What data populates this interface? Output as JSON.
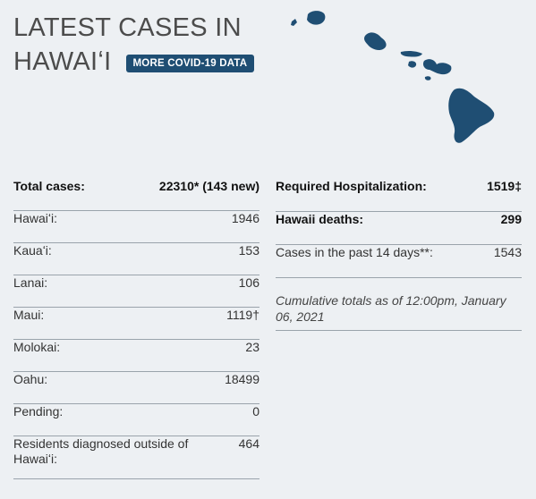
{
  "header": {
    "title_line1": "LATEST CASES IN",
    "title_line2": "HAWAIʻI",
    "more_button": "MORE COVID-19 DATA"
  },
  "map": {
    "icon": "hawaii-islands-map-icon",
    "color": "#1f4e73"
  },
  "left": {
    "total": {
      "label": "Total cases:",
      "value": "22310* (143 new)"
    },
    "rows": [
      {
        "label": "Hawaiʻi:",
        "value": "1946"
      },
      {
        "label": "Kauaʻi:",
        "value": "153"
      },
      {
        "label": "Lanai:",
        "value": "106"
      },
      {
        "label": "Maui:",
        "value": "1119†"
      },
      {
        "label": "Molokai:",
        "value": "23"
      },
      {
        "label": "Oahu:",
        "value": "18499"
      },
      {
        "label": "Pending:",
        "value": "0"
      },
      {
        "label": "Residents diagnosed outside of Hawaiʻi:",
        "value": "464"
      }
    ]
  },
  "right": {
    "hospitalization": {
      "label": "Required Hospitalization:",
      "value": "1519‡"
    },
    "deaths": {
      "label": "Hawaii deaths:",
      "value": "299"
    },
    "past14": {
      "label": "Cases in the past 14 days**:",
      "value": "1543"
    },
    "note": "Cumulative totals as of 12:00pm, January 06, 2021"
  },
  "colors": {
    "accent": "#1f4e73",
    "background": "#edf0f3",
    "rule": "#9aa3ab"
  }
}
